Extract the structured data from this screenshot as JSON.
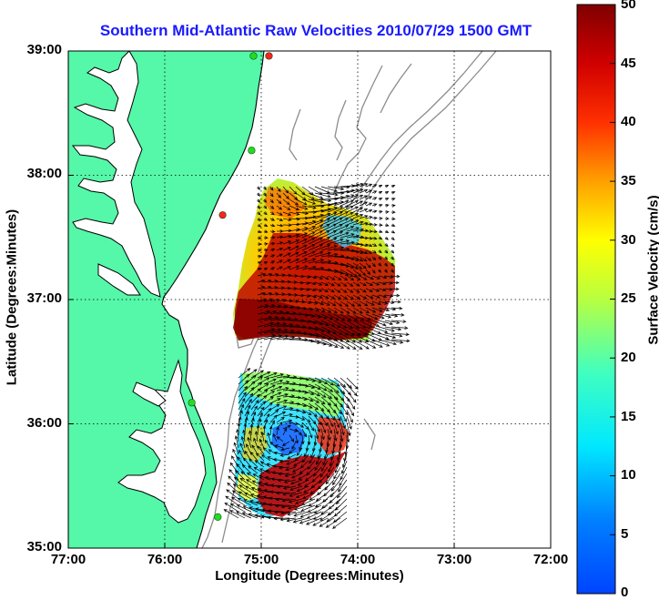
{
  "title": "Southern Mid-Atlantic Raw Velocities 2010/07/29 1500 GMT",
  "axes": {
    "x_label": "Longitude (Degrees:Minutes)",
    "y_label": "Latitude (Degrees:Minutes)",
    "x_ticks": [
      "77:00",
      "76:00",
      "75:00",
      "74:00",
      "73:00",
      "72:00"
    ],
    "y_ticks": [
      "39:00",
      "38:00",
      "37:00",
      "36:00",
      "35:00"
    ],
    "x_range_deg_west": [
      77,
      72
    ],
    "y_range_deg_north": [
      35,
      39
    ]
  },
  "colorbar": {
    "label": "Surface Velocity (cm/s)",
    "ticks": [
      "50",
      "45",
      "40",
      "35",
      "30",
      "25",
      "20",
      "15",
      "10",
      "5",
      "0"
    ],
    "range": [
      0,
      50
    ],
    "colormap": "jet"
  },
  "colors": {
    "land": "#55f7a8",
    "coastline": "#000000",
    "bathymetry": "#8c8c8c",
    "grid": "#000000",
    "station_active": "#22dd22",
    "station_inactive": "#ff2020",
    "title": "#1a1aff"
  },
  "stations": [
    {
      "lon": -74.92,
      "lat": 38.96,
      "status": "inactive"
    },
    {
      "lon": -75.08,
      "lat": 38.96,
      "status": "active"
    },
    {
      "lon": -75.1,
      "lat": 38.2,
      "status": "active"
    },
    {
      "lon": -75.4,
      "lat": 37.68,
      "status": "inactive"
    },
    {
      "lon": -75.72,
      "lat": 36.17,
      "status": "active"
    },
    {
      "lon": -75.45,
      "lat": 35.25,
      "status": "active"
    }
  ]
}
